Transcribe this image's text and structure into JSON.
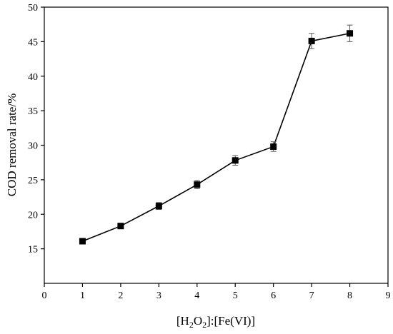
{
  "chart_data": {
    "type": "line",
    "title": "",
    "xlabel": {
      "prefix": "[H",
      "sub1": "2",
      "mid": "O",
      "sub2": "2",
      "suffix": "]:[Fe(VI)]"
    },
    "ylabel": "COD removal rate/%",
    "xlim": [
      0,
      9
    ],
    "ylim": [
      10,
      50
    ],
    "xticks": [
      0,
      1,
      2,
      3,
      4,
      5,
      6,
      7,
      8,
      9
    ],
    "yticks": [
      15,
      20,
      25,
      30,
      35,
      40,
      45,
      50
    ],
    "grid": false,
    "marker": "square",
    "color": "#000000",
    "series": [
      {
        "x": [
          1,
          2,
          3,
          4,
          5,
          6,
          7,
          8
        ],
        "y": [
          16.1,
          18.3,
          21.2,
          24.3,
          27.8,
          29.8,
          45.1,
          46.2
        ],
        "error": [
          0.3,
          0.4,
          0.5,
          0.6,
          0.7,
          0.7,
          1.1,
          1.2
        ]
      }
    ]
  }
}
